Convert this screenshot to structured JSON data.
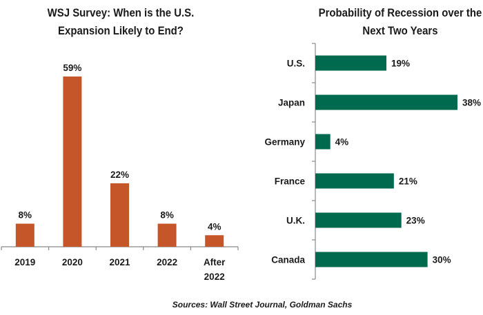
{
  "chart_data": [
    {
      "type": "bar",
      "orientation": "vertical",
      "title_lines": [
        "WSJ Survey: When is the U.S.",
        "Expansion Likely to End?"
      ],
      "categories": [
        [
          "2019"
        ],
        [
          "2020"
        ],
        [
          "2021"
        ],
        [
          "2022"
        ],
        [
          "After",
          "2022"
        ]
      ],
      "values": [
        8,
        59,
        22,
        8,
        4
      ],
      "data_labels": [
        "8%",
        "59%",
        "22%",
        "8%",
        "4%"
      ],
      "unit": "%",
      "ylim": [
        0,
        59
      ],
      "grid": false,
      "color": "#C5562A"
    },
    {
      "type": "bar",
      "orientation": "horizontal",
      "title_lines": [
        "Probability of Recession over the",
        "Next Two Years"
      ],
      "categories": [
        "U.S.",
        "Japan",
        "Germany",
        "France",
        "U.K.",
        "Canada"
      ],
      "values": [
        19,
        38,
        4,
        21,
        23,
        30
      ],
      "data_labels": [
        "19%",
        "38%",
        "4%",
        "21%",
        "23%",
        "30%"
      ],
      "unit": "%",
      "xlim": [
        0,
        38
      ],
      "grid": false,
      "color": "#006A4E"
    }
  ],
  "source": "Sources: Wall Street Journal, Goldman Sachs"
}
